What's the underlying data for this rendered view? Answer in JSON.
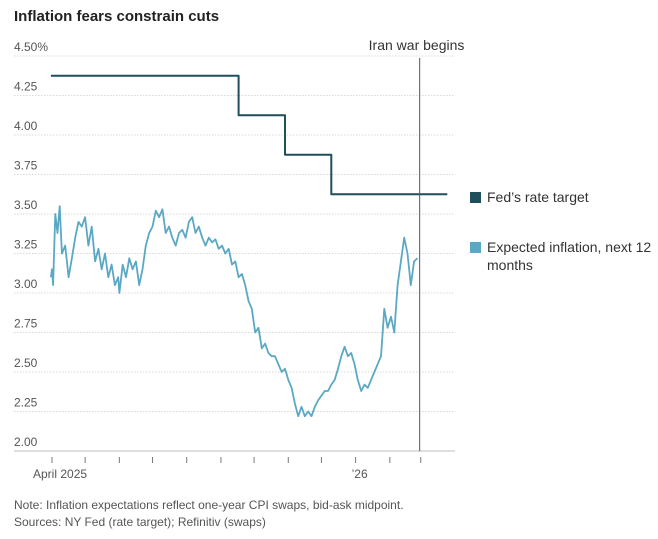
{
  "title": "Inflation fears constrain cuts",
  "note": "Note: Inflation expectations reflect one-year CPI swaps, bid-ask midpoint.",
  "sources": "Sources: NY Fed (rate target); Refinitiv (swaps)",
  "colors": {
    "fed": "#1f4f5c",
    "inflation": "#5ba8c4",
    "grid": "#d9d9d9",
    "annotation": "#555555"
  },
  "chart_data": {
    "type": "line",
    "ylim": [
      2.0,
      4.5
    ],
    "yticks": [
      {
        "value": 4.5,
        "label": "4.50%"
      },
      {
        "value": 4.25,
        "label": "4.25"
      },
      {
        "value": 4.0,
        "label": "4.00"
      },
      {
        "value": 3.75,
        "label": "3.75"
      },
      {
        "value": 3.5,
        "label": "3.50"
      },
      {
        "value": 3.25,
        "label": "3.25"
      },
      {
        "value": 3.0,
        "label": "3.00"
      },
      {
        "value": 2.75,
        "label": "2.75"
      },
      {
        "value": 2.5,
        "label": "2.50"
      },
      {
        "value": 2.25,
        "label": "2.25"
      },
      {
        "value": 2.0,
        "label": "2.00"
      }
    ],
    "xlim": [
      "2025-04-01",
      "2026-04-01"
    ],
    "xticks": [
      {
        "date": "2025-04-01",
        "label": "April 2025"
      },
      {
        "date": "2025-05-01",
        "label": ""
      },
      {
        "date": "2025-06-01",
        "label": ""
      },
      {
        "date": "2025-07-01",
        "label": ""
      },
      {
        "date": "2025-08-01",
        "label": ""
      },
      {
        "date": "2025-09-01",
        "label": ""
      },
      {
        "date": "2025-10-01",
        "label": ""
      },
      {
        "date": "2025-11-01",
        "label": ""
      },
      {
        "date": "2025-12-01",
        "label": ""
      },
      {
        "date": "2026-01-01",
        "label": "’26"
      },
      {
        "date": "2026-02-01",
        "label": ""
      },
      {
        "date": "2026-03-01",
        "label": ""
      }
    ],
    "annotation": {
      "date": "2026-02-28",
      "label": "Iran war begins"
    },
    "series": [
      {
        "name": "Fed’s rate target",
        "color": "#1f4f5c",
        "step": true,
        "points": [
          [
            "2025-03-31",
            4.375
          ],
          [
            "2025-09-17",
            4.125
          ],
          [
            "2025-10-29",
            3.875
          ],
          [
            "2025-12-10",
            3.625
          ],
          [
            "2026-03-25",
            3.625
          ]
        ]
      },
      {
        "name": "Expected inflation, next 12 months",
        "color": "#5ba8c4",
        "step": false,
        "points": [
          [
            "2025-03-31",
            3.1
          ],
          [
            "2025-04-01",
            3.15
          ],
          [
            "2025-04-02",
            3.05
          ],
          [
            "2025-04-03",
            3.28
          ],
          [
            "2025-04-04",
            3.5
          ],
          [
            "2025-04-06",
            3.38
          ],
          [
            "2025-04-08",
            3.55
          ],
          [
            "2025-04-10",
            3.25
          ],
          [
            "2025-04-13",
            3.3
          ],
          [
            "2025-04-16",
            3.1
          ],
          [
            "2025-04-19",
            3.22
          ],
          [
            "2025-04-22",
            3.35
          ],
          [
            "2025-04-25",
            3.45
          ],
          [
            "2025-04-28",
            3.42
          ],
          [
            "2025-05-01",
            3.48
          ],
          [
            "2025-05-04",
            3.3
          ],
          [
            "2025-05-07",
            3.42
          ],
          [
            "2025-05-10",
            3.2
          ],
          [
            "2025-05-13",
            3.28
          ],
          [
            "2025-05-16",
            3.15
          ],
          [
            "2025-05-19",
            3.25
          ],
          [
            "2025-05-22",
            3.1
          ],
          [
            "2025-05-25",
            3.18
          ],
          [
            "2025-05-28",
            3.05
          ],
          [
            "2025-05-31",
            3.1
          ],
          [
            "2025-06-01",
            3.0
          ],
          [
            "2025-06-04",
            3.18
          ],
          [
            "2025-06-07",
            3.1
          ],
          [
            "2025-06-10",
            3.22
          ],
          [
            "2025-06-13",
            3.15
          ],
          [
            "2025-06-16",
            3.2
          ],
          [
            "2025-06-19",
            3.05
          ],
          [
            "2025-06-22",
            3.15
          ],
          [
            "2025-06-25",
            3.3
          ],
          [
            "2025-06-28",
            3.38
          ],
          [
            "2025-07-01",
            3.42
          ],
          [
            "2025-07-04",
            3.52
          ],
          [
            "2025-07-07",
            3.48
          ],
          [
            "2025-07-10",
            3.53
          ],
          [
            "2025-07-13",
            3.38
          ],
          [
            "2025-07-16",
            3.42
          ],
          [
            "2025-07-19",
            3.35
          ],
          [
            "2025-07-22",
            3.3
          ],
          [
            "2025-07-25",
            3.38
          ],
          [
            "2025-07-28",
            3.4
          ],
          [
            "2025-07-31",
            3.35
          ],
          [
            "2025-08-03",
            3.45
          ],
          [
            "2025-08-06",
            3.48
          ],
          [
            "2025-08-09",
            3.38
          ],
          [
            "2025-08-12",
            3.42
          ],
          [
            "2025-08-15",
            3.35
          ],
          [
            "2025-08-18",
            3.3
          ],
          [
            "2025-08-21",
            3.35
          ],
          [
            "2025-08-24",
            3.32
          ],
          [
            "2025-08-27",
            3.34
          ],
          [
            "2025-08-30",
            3.28
          ],
          [
            "2025-09-02",
            3.3
          ],
          [
            "2025-09-05",
            3.25
          ],
          [
            "2025-09-08",
            3.28
          ],
          [
            "2025-09-11",
            3.18
          ],
          [
            "2025-09-14",
            3.2
          ],
          [
            "2025-09-17",
            3.1
          ],
          [
            "2025-09-20",
            3.12
          ],
          [
            "2025-09-23",
            3.05
          ],
          [
            "2025-09-26",
            2.95
          ],
          [
            "2025-09-29",
            2.9
          ],
          [
            "2025-10-02",
            2.75
          ],
          [
            "2025-10-05",
            2.78
          ],
          [
            "2025-10-08",
            2.65
          ],
          [
            "2025-10-11",
            2.68
          ],
          [
            "2025-10-14",
            2.62
          ],
          [
            "2025-10-17",
            2.6
          ],
          [
            "2025-10-20",
            2.6
          ],
          [
            "2025-10-23",
            2.55
          ],
          [
            "2025-10-26",
            2.5
          ],
          [
            "2025-10-29",
            2.52
          ],
          [
            "2025-11-01",
            2.45
          ],
          [
            "2025-11-04",
            2.4
          ],
          [
            "2025-11-07",
            2.3
          ],
          [
            "2025-11-10",
            2.22
          ],
          [
            "2025-11-13",
            2.28
          ],
          [
            "2025-11-16",
            2.22
          ],
          [
            "2025-11-19",
            2.25
          ],
          [
            "2025-11-22",
            2.22
          ],
          [
            "2025-11-25",
            2.28
          ],
          [
            "2025-11-28",
            2.32
          ],
          [
            "2025-12-01",
            2.35
          ],
          [
            "2025-12-04",
            2.38
          ],
          [
            "2025-12-07",
            2.38
          ],
          [
            "2025-12-10",
            2.42
          ],
          [
            "2025-12-13",
            2.45
          ],
          [
            "2025-12-16",
            2.52
          ],
          [
            "2025-12-19",
            2.6
          ],
          [
            "2025-12-22",
            2.66
          ],
          [
            "2025-12-25",
            2.6
          ],
          [
            "2025-12-28",
            2.62
          ],
          [
            "2025-12-31",
            2.55
          ],
          [
            "2026-01-03",
            2.45
          ],
          [
            "2026-01-06",
            2.38
          ],
          [
            "2026-01-09",
            2.42
          ],
          [
            "2026-01-12",
            2.4
          ],
          [
            "2026-01-15",
            2.45
          ],
          [
            "2026-01-18",
            2.5
          ],
          [
            "2026-01-21",
            2.55
          ],
          [
            "2026-01-24",
            2.6
          ],
          [
            "2026-01-27",
            2.9
          ],
          [
            "2026-01-30",
            2.78
          ],
          [
            "2026-02-02",
            2.85
          ],
          [
            "2026-02-05",
            2.75
          ],
          [
            "2026-02-08",
            3.05
          ],
          [
            "2026-02-11",
            3.2
          ],
          [
            "2026-02-14",
            3.35
          ],
          [
            "2026-02-17",
            3.25
          ],
          [
            "2026-02-20",
            3.05
          ],
          [
            "2026-02-23",
            3.2
          ],
          [
            "2026-02-26",
            3.22
          ]
        ]
      }
    ]
  },
  "legend": [
    {
      "label": "Fed’s rate target",
      "color": "#1f4f5c"
    },
    {
      "label": "Expected inflation, next 12 months",
      "color": "#5ba8c4"
    }
  ]
}
